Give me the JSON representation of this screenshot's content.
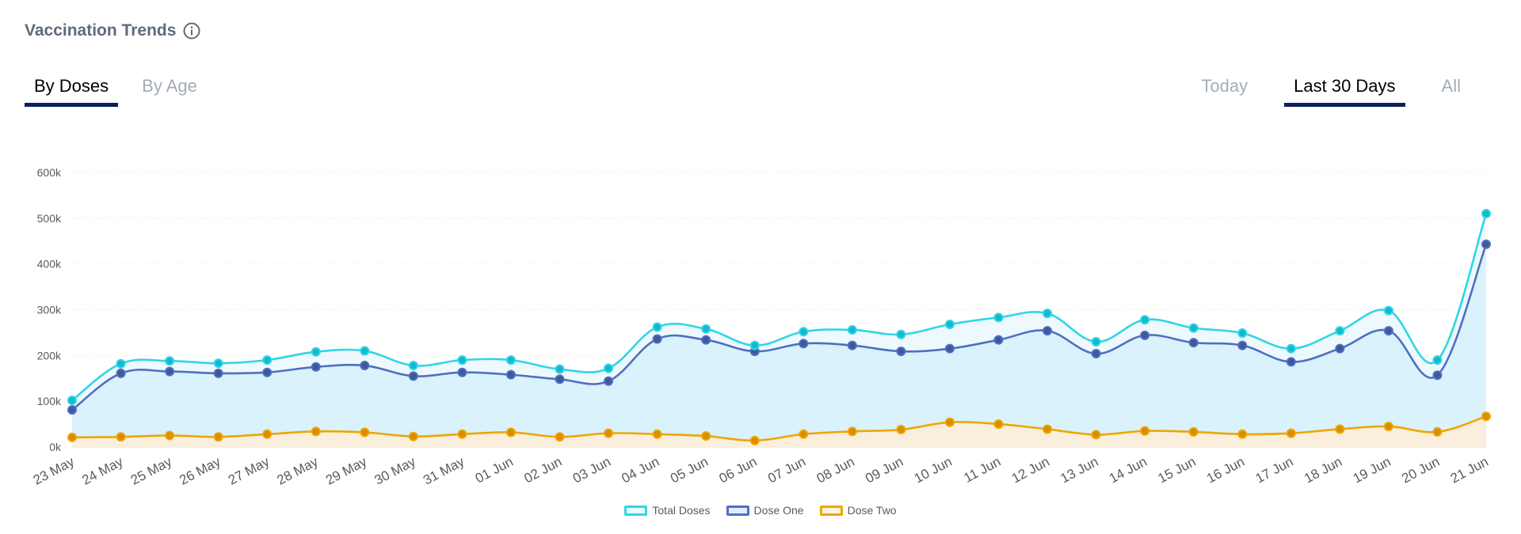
{
  "header": {
    "title": "Vaccination Trends",
    "info_icon": "info-circle-icon"
  },
  "tabs_left": [
    {
      "label": "By Doses",
      "active": true
    },
    {
      "label": "By Age",
      "active": false
    }
  ],
  "tabs_right": [
    {
      "label": "Today",
      "active": false
    },
    {
      "label": "Last 30 Days",
      "active": true
    },
    {
      "label": "All",
      "active": false
    }
  ],
  "colors": {
    "total": "#2fd6e6",
    "dose_one": "#4f6fc2",
    "dose_two": "#f0a500",
    "area_blue": "#d6f1fb",
    "area_orange": "#fdeed8",
    "tab_underline": "#0b1d5a"
  },
  "chart_data": {
    "type": "line",
    "categories": [
      "23 May",
      "24 May",
      "25 May",
      "26 May",
      "27 May",
      "28 May",
      "29 May",
      "30 May",
      "31 May",
      "01 Jun",
      "02 Jun",
      "03 Jun",
      "04 Jun",
      "05 Jun",
      "06 Jun",
      "07 Jun",
      "08 Jun",
      "09 Jun",
      "10 Jun",
      "11 Jun",
      "12 Jun",
      "13 Jun",
      "14 Jun",
      "15 Jun",
      "16 Jun",
      "17 Jun",
      "18 Jun",
      "19 Jun",
      "20 Jun",
      "21 Jun"
    ],
    "series": [
      {
        "name": "Total Doses",
        "values": [
          102000,
          182000,
          188000,
          183000,
          190000,
          208000,
          210000,
          178000,
          190000,
          190000,
          170000,
          172000,
          262000,
          258000,
          222000,
          252000,
          256000,
          246000,
          268000,
          283000,
          292000,
          230000,
          278000,
          260000,
          249000,
          215000,
          254000,
          298000,
          190000,
          510000
        ]
      },
      {
        "name": "Dose One",
        "values": [
          81000,
          161000,
          165000,
          161000,
          163000,
          175000,
          178000,
          155000,
          163000,
          158000,
          148000,
          144000,
          236000,
          234000,
          209000,
          226000,
          222000,
          209000,
          215000,
          234000,
          254000,
          204000,
          244000,
          228000,
          222000,
          186000,
          215000,
          254000,
          157000,
          443000
        ]
      },
      {
        "name": "Dose Two",
        "values": [
          21000,
          22000,
          25000,
          22000,
          28000,
          34000,
          32000,
          23000,
          28000,
          32000,
          22000,
          30000,
          28000,
          24000,
          14000,
          28000,
          34000,
          38000,
          54000,
          50000,
          39000,
          27000,
          35000,
          33000,
          28000,
          30000,
          39000,
          45000,
          33000,
          67000
        ]
      }
    ],
    "y_ticks": [
      "0k",
      "100k",
      "200k",
      "300k",
      "400k",
      "500k",
      "600k"
    ],
    "ylim": [
      0,
      600000
    ],
    "grid": true,
    "legend_position": "bottom-center"
  }
}
